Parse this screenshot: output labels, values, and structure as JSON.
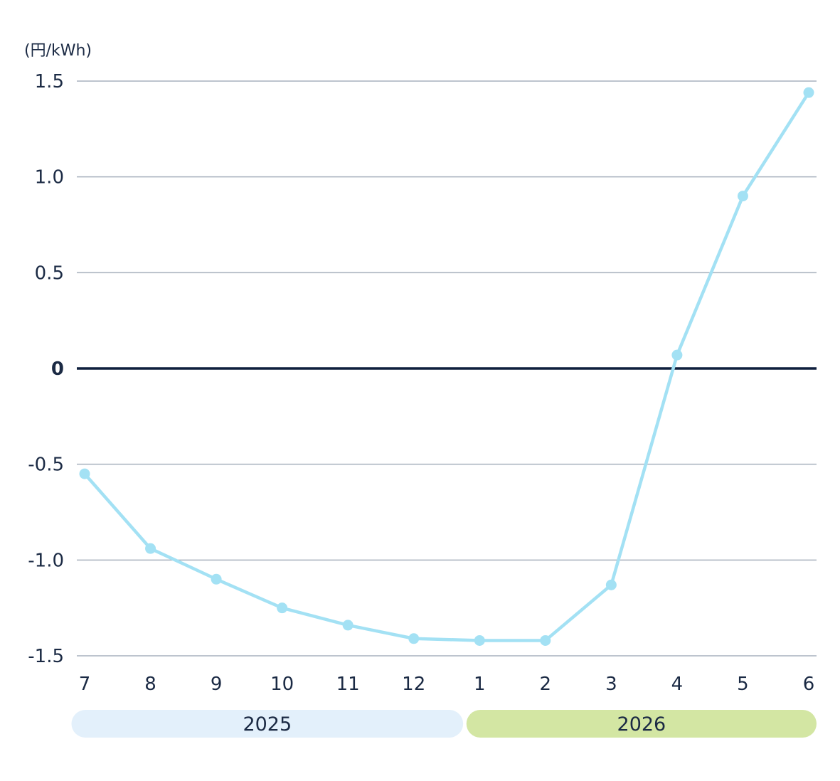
{
  "chart_data": {
    "type": "line",
    "unit_label": "(円/kWh)",
    "xlabel": "",
    "ylabel": "",
    "ylim": [
      -1.5,
      1.5
    ],
    "yticks": [
      {
        "value": 1.5,
        "label": "1.5"
      },
      {
        "value": 1.0,
        "label": "1.0"
      },
      {
        "value": 0.5,
        "label": "0.5"
      },
      {
        "value": 0,
        "label": "0"
      },
      {
        "value": -0.5,
        "label": "-0.5"
      },
      {
        "value": -1.0,
        "label": "-1.0"
      },
      {
        "value": -1.5,
        "label": "-1.5"
      }
    ],
    "categories": [
      "7",
      "8",
      "9",
      "10",
      "11",
      "12",
      "1",
      "2",
      "3",
      "4",
      "5",
      "6"
    ],
    "series": [
      {
        "values": [
          -0.55,
          -0.94,
          -1.1,
          -1.25,
          -1.34,
          -1.41,
          -1.42,
          -1.42,
          -1.13,
          0.07,
          0.9,
          1.44
        ]
      }
    ],
    "year_groups": [
      {
        "label": "2025",
        "start": 0,
        "end": 5,
        "color": "#e3f0fb"
      },
      {
        "label": "2026",
        "start": 6,
        "end": 11,
        "color": "#d3e6a3"
      }
    ],
    "grid": true,
    "colors": {
      "line": "#a3e1f4",
      "grid": "#a7b0bd",
      "zero_line": "#0f1f3d",
      "text": "#1b2a44"
    }
  }
}
